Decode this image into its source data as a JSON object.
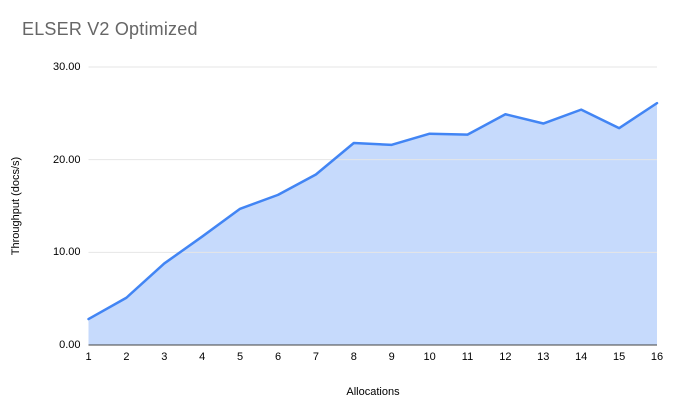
{
  "chart": {
    "title": "ELSER V2 Optimized",
    "xlabel": "Allocations",
    "ylabel": "Throughput (docs/s)"
  },
  "chart_data": {
    "type": "area",
    "title": "ELSER V2 Optimized",
    "xlabel": "Allocations",
    "ylabel": "Throughput (docs/s)",
    "x": [
      1,
      2,
      3,
      4,
      5,
      6,
      7,
      8,
      9,
      10,
      11,
      12,
      13,
      14,
      15,
      16
    ],
    "values": [
      2.8,
      5.1,
      8.8,
      11.7,
      14.7,
      16.2,
      18.4,
      21.8,
      21.6,
      22.8,
      22.7,
      24.9,
      23.9,
      25.4,
      23.4,
      26.1
    ],
    "ylim": [
      0,
      30
    ],
    "yticks": [
      0,
      10,
      20,
      30
    ],
    "ytick_labels": [
      "0.00",
      "10.00",
      "20.00",
      "30.00"
    ],
    "grid": true,
    "legend_position": "none",
    "line_color": "#4285f4",
    "fill_color": "rgba(66,133,244,0.30)",
    "gridline_color": "#e6e6e6",
    "axis_line_color": "#424242",
    "title_color": "#666666",
    "tick_label_color": "#000000"
  }
}
